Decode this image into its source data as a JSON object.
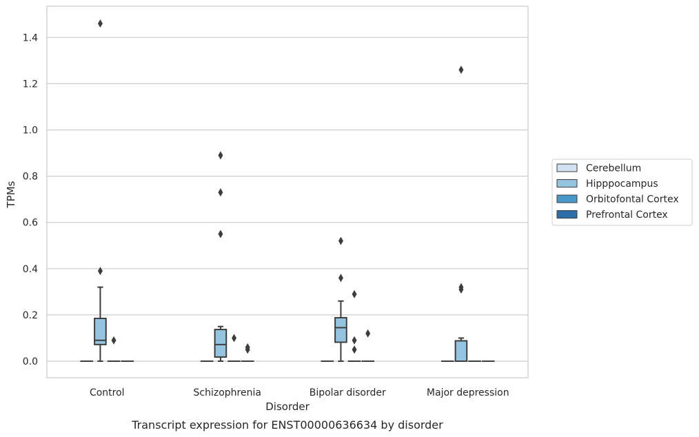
{
  "chart_data": {
    "type": "box",
    "xlabel": "Disorder",
    "ylabel": "TPMs",
    "caption": "Transcript expression for ENST00000636634 by disorder",
    "categories": [
      "Control",
      "Schizophrenia",
      "Bipolar disorder",
      "Major depression"
    ],
    "yticks": [
      "0.0",
      "0.2",
      "0.4",
      "0.6",
      "0.8",
      "1.0",
      "1.2",
      "1.4"
    ],
    "ylim": [
      -0.07,
      1.53
    ],
    "grid": true,
    "legend_position": "right",
    "series": [
      {
        "name": "Cerebellum",
        "color": "#d0e1f2",
        "boxes": [
          {
            "q1": 0,
            "median": 0,
            "q3": 0,
            "whislo": 0,
            "whishi": 0,
            "fliers": []
          },
          {
            "q1": 0,
            "median": 0,
            "q3": 0,
            "whislo": 0,
            "whishi": 0,
            "fliers": []
          },
          {
            "q1": 0,
            "median": 0,
            "q3": 0,
            "whislo": 0,
            "whishi": 0,
            "fliers": []
          },
          {
            "q1": 0,
            "median": 0,
            "q3": 0,
            "whislo": 0,
            "whishi": 0,
            "fliers": []
          }
        ]
      },
      {
        "name": "Hipppocampus",
        "color": "#94c4df",
        "boxes": [
          {
            "q1": 0.072,
            "median": 0.09,
            "q3": 0.185,
            "whislo": 0,
            "whishi": 0.32,
            "fliers": [
              0.39,
              1.46
            ]
          },
          {
            "q1": 0.018,
            "median": 0.072,
            "q3": 0.137,
            "whislo": 0,
            "whishi": 0.15,
            "fliers": [
              0.55,
              0.73,
              0.89
            ]
          },
          {
            "q1": 0.082,
            "median": 0.145,
            "q3": 0.188,
            "whislo": 0,
            "whishi": 0.26,
            "fliers": [
              0.36,
              0.52
            ]
          },
          {
            "q1": 0,
            "median": 0,
            "q3": 0.088,
            "whislo": 0,
            "whishi": 0.1,
            "fliers": [
              0.31,
              0.32,
              1.26
            ]
          }
        ]
      },
      {
        "name": "Orbitofontal Cortex",
        "color": "#4a98c9",
        "boxes": [
          {
            "q1": 0,
            "median": 0,
            "q3": 0,
            "whislo": 0,
            "whishi": 0,
            "fliers": [
              0.09
            ]
          },
          {
            "q1": 0,
            "median": 0,
            "q3": 0,
            "whislo": 0,
            "whishi": 0,
            "fliers": [
              0.1
            ]
          },
          {
            "q1": 0,
            "median": 0,
            "q3": 0,
            "whislo": 0,
            "whishi": 0,
            "fliers": [
              0.05,
              0.09,
              0.29
            ]
          },
          {
            "q1": 0,
            "median": 0,
            "q3": 0,
            "whislo": 0,
            "whishi": 0,
            "fliers": []
          }
        ]
      },
      {
        "name": "Prefrontal Cortex",
        "color": "#2e6ea8",
        "boxes": [
          {
            "q1": 0,
            "median": 0,
            "q3": 0,
            "whislo": 0,
            "whishi": 0,
            "fliers": []
          },
          {
            "q1": 0,
            "median": 0,
            "q3": 0,
            "whislo": 0,
            "whishi": 0,
            "fliers": [
              0.05,
              0.06
            ]
          },
          {
            "q1": 0,
            "median": 0,
            "q3": 0,
            "whislo": 0,
            "whishi": 0,
            "fliers": [
              0.12
            ]
          },
          {
            "q1": 0,
            "median": 0,
            "q3": 0,
            "whislo": 0,
            "whishi": 0,
            "fliers": []
          }
        ]
      }
    ]
  }
}
